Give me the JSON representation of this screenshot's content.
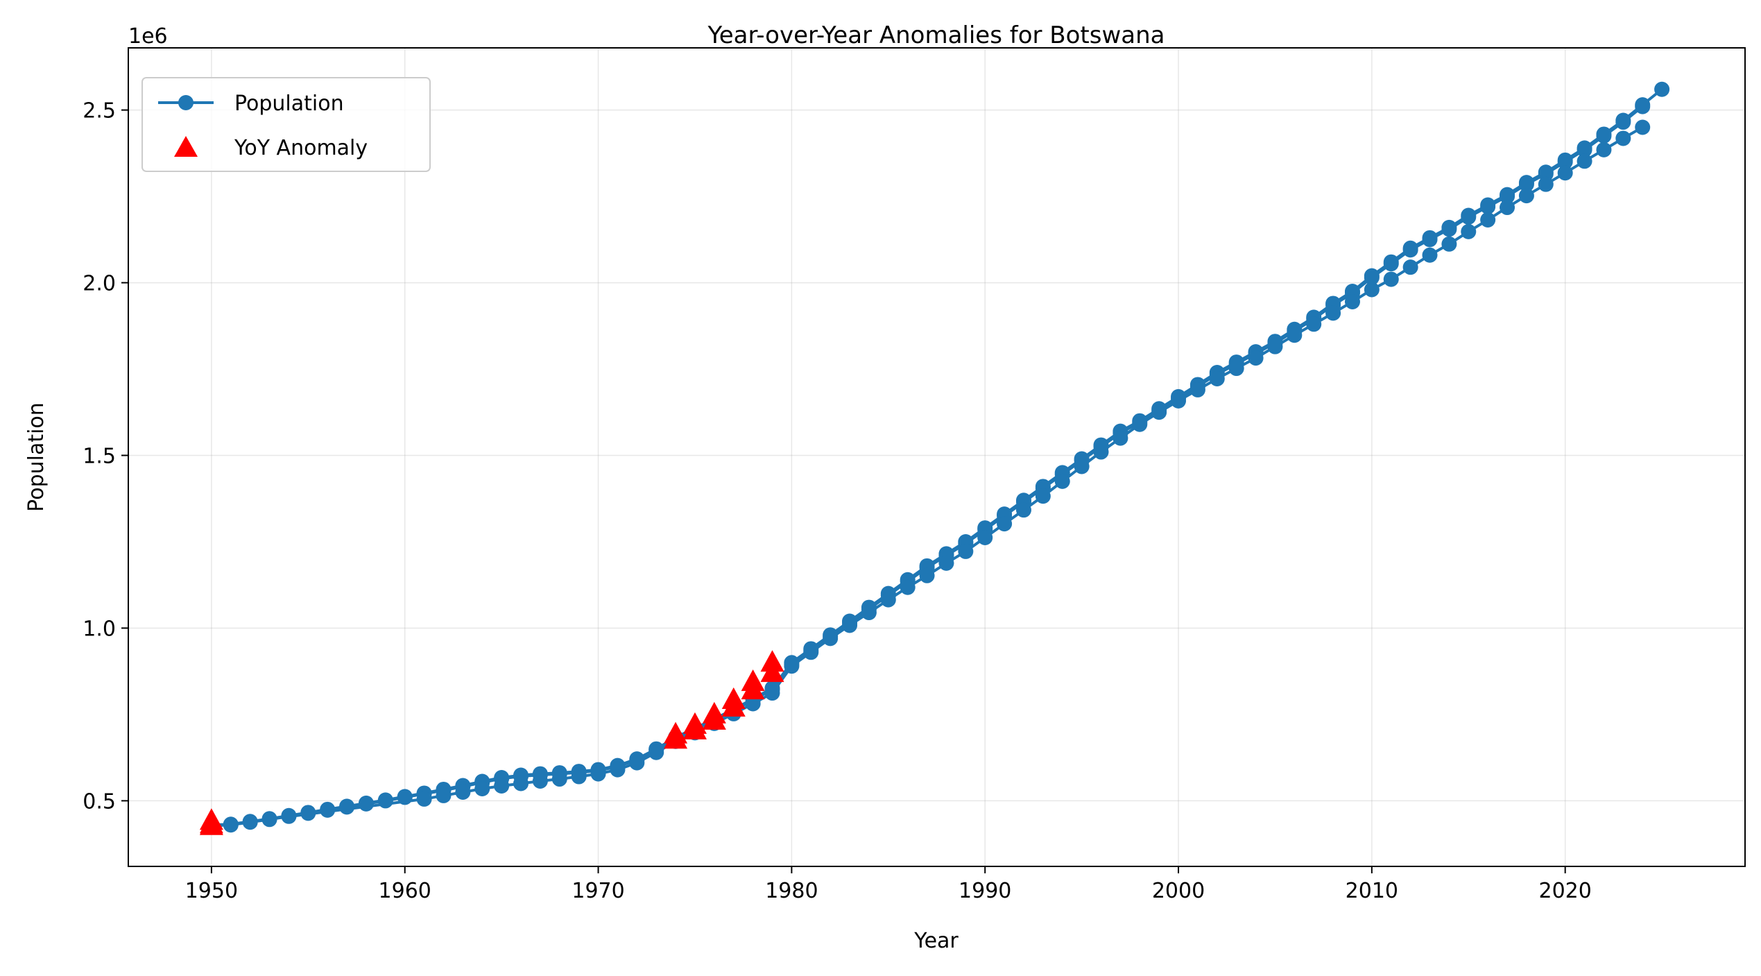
{
  "chart_data": {
    "type": "line",
    "title": "Year-over-Year Anomalies for Botswana",
    "xlabel": "Year",
    "ylabel": "Population",
    "y_offset_label": "1e6",
    "xlim": [
      1945.7,
      2029.3
    ],
    "ylim": [
      310000,
      2680000
    ],
    "x_ticks": [
      1950,
      1960,
      1970,
      1980,
      1990,
      2000,
      2010,
      2020
    ],
    "y_ticks": [
      0.5,
      1.0,
      1.5,
      2.0,
      2.5
    ],
    "y_tick_scale": 1000000,
    "grid": true,
    "legend_position": "top-left",
    "colors": {
      "population": "#1f77b4",
      "anomaly": "#ff0000"
    },
    "series": [
      {
        "name": "Population",
        "style": "line-with-circle-markers",
        "segments": [
          {
            "x": [
              1950,
              1951,
              1952,
              1953,
              1954,
              1955,
              1956,
              1957,
              1958,
              1959,
              1960,
              1961,
              1962,
              1963,
              1964,
              1965,
              1966,
              1967,
              1968,
              1969,
              1970,
              1971,
              1972,
              1973,
              1974,
              1975,
              1976,
              1977,
              1978,
              1979,
              1980,
              1981,
              1982,
              1983,
              1984,
              1985,
              1986,
              1987,
              1988,
              1989,
              1990,
              1991,
              1992,
              1993,
              1994,
              1995,
              1996,
              1997,
              1998,
              1999,
              2000,
              2001,
              2002,
              2003,
              2004,
              2005,
              2006,
              2007,
              2008,
              2009,
              2010,
              2011,
              2012,
              2013,
              2014,
              2015,
              2016,
              2017,
              2018,
              2019,
              2020,
              2021,
              2022,
              2023,
              2024,
              2025
            ],
            "y": [
              430000,
              432000,
              440000,
              448000,
              457000,
              466000,
              475000,
              484000,
              493000,
              502000,
              512000,
              522000,
              533000,
              544000,
              556000,
              567000,
              574000,
              578000,
              581000,
              585000,
              590000,
              602000,
              621000,
              650000,
              684000,
              710000,
              737000,
              765000,
              795000,
              826000,
              900000,
              940000,
              980000,
              1020000,
              1060000,
              1100000,
              1140000,
              1180000,
              1215000,
              1250000,
              1290000,
              1330000,
              1370000,
              1410000,
              1450000,
              1490000,
              1530000,
              1570000,
              1600000,
              1635000,
              1670000,
              1705000,
              1740000,
              1770000,
              1800000,
              1830000,
              1865000,
              1900000,
              1940000,
              1975000,
              2020000,
              2060000,
              2100000,
              2130000,
              2160000,
              2195000,
              2225000,
              2255000,
              2290000,
              2320000,
              2355000,
              2390000,
              2430000,
              2470000,
              2515000,
              2560000
            ]
          },
          {
            "x": [
              1950,
              1951,
              1952,
              1953,
              1954,
              1955,
              1956,
              1957,
              1958,
              1959,
              1960,
              1961,
              1962,
              1963,
              1964,
              1965,
              1966,
              1967,
              1968,
              1969,
              1970,
              1971,
              1972,
              1973,
              1974,
              1975,
              1976,
              1977,
              1978,
              1979,
              1980,
              1981,
              1982,
              1983,
              1984,
              1985,
              1986,
              1987,
              1988,
              1989,
              1990,
              1991,
              1992,
              1993,
              1994,
              1995,
              1996,
              1997,
              1998,
              1999,
              2000,
              2001,
              2002,
              2003,
              2004,
              2005,
              2006,
              2007,
              2008,
              2009,
              2010,
              2011,
              2012,
              2013,
              2014,
              2015,
              2016,
              2017,
              2018,
              2019,
              2020,
              2021,
              2022,
              2023,
              2024
            ],
            "y": [
              428000,
              430000,
              438000,
              446000,
              455000,
              464000,
              473000,
              482000,
              491000,
              500000,
              510000,
              520000,
              530000,
              541000,
              553000,
              564000,
              571000,
              575000,
              578000,
              582000,
              587000,
              599000,
              618000,
              647000,
              680000,
              706000,
              733000,
              761000,
              791000,
              822000,
              895000,
              935000,
              975000,
              1015000,
              1055000,
              1095000,
              1135000,
              1175000,
              1210000,
              1245000,
              1285000,
              1325000,
              1365000,
              1405000,
              1445000,
              1485000,
              1525000,
              1565000,
              1595000,
              1630000,
              1665000,
              1700000,
              1735000,
              1765000,
              1795000,
              1825000,
              1860000,
              1895000,
              1935000,
              1970000,
              2015000,
              2055000,
              2095000,
              2125000,
              2155000,
              2190000,
              2220000,
              2250000,
              2285000,
              2315000,
              2350000,
              2385000,
              2425000,
              2465000,
              2510000
            ]
          },
          {
            "x": [
              1950,
              1961,
              1962,
              1963,
              1964,
              1965,
              1966,
              1967,
              1968,
              1969,
              1970,
              1971,
              1972,
              1973,
              1974,
              1975,
              1976,
              1977,
              1978,
              1979,
              1980,
              1981,
              1982,
              1983,
              1984,
              1985,
              1986,
              1987,
              1988,
              1989,
              1990,
              1991,
              1992,
              1993,
              1994,
              1995,
              1996,
              1997,
              1998,
              1999,
              2000,
              2001,
              2002,
              2003,
              2004,
              2005,
              2006,
              2007,
              2008,
              2009,
              2010,
              2011,
              2012,
              2013,
              2014,
              2015,
              2016,
              2017,
              2018,
              2019,
              2020,
              2021,
              2022,
              2023,
              2024
            ],
            "y": [
              425000,
              505000,
              515000,
              525000,
              535000,
              543000,
              550000,
              557000,
              563000,
              570000,
              578000,
              590000,
              610000,
              640000,
              672000,
              697000,
              724000,
              752000,
              781000,
              812000,
              890000,
              930000,
              970000,
              1008000,
              1045000,
              1082000,
              1118000,
              1152000,
              1188000,
              1222000,
              1262000,
              1302000,
              1342000,
              1382000,
              1425000,
              1468000,
              1510000,
              1550000,
              1590000,
              1625000,
              1658000,
              1690000,
              1722000,
              1752000,
              1782000,
              1815000,
              1848000,
              1880000,
              1912000,
              1945000,
              1980000,
              2010000,
              2045000,
              2080000,
              2112000,
              2148000,
              2182000,
              2218000,
              2252000,
              2285000,
              2318000,
              2352000,
              2385000,
              2418000,
              2450000
            ]
          }
        ]
      },
      {
        "name": "YoY Anomaly",
        "style": "triangle-markers",
        "x": [
          1950,
          1950,
          1950,
          1974,
          1974,
          1975,
          1975,
          1976,
          1976,
          1977,
          1977,
          1978,
          1978,
          1979,
          1979
        ],
        "y": [
          440000,
          430000,
          425000,
          690000,
          675000,
          718000,
          702000,
          748000,
          730000,
          790000,
          768000,
          842000,
          818000,
          898000,
          868000
        ]
      }
    ]
  }
}
